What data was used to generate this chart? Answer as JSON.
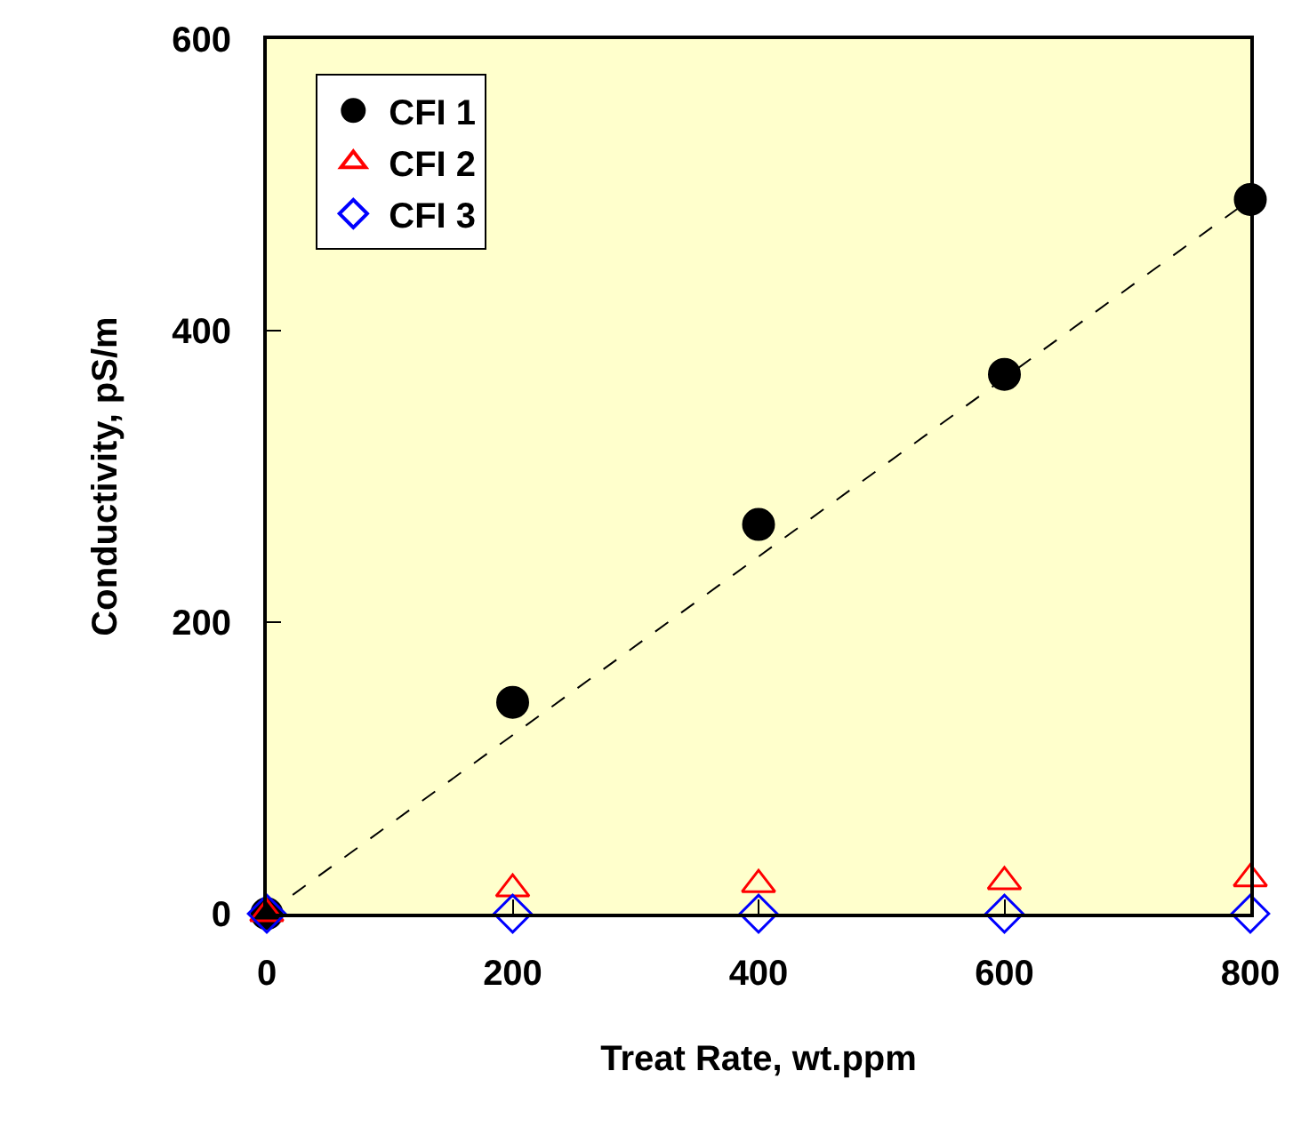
{
  "chart_data": {
    "type": "scatter",
    "xlabel": "Treat Rate, wt.ppm",
    "ylabel": "Conductivity, pS/m",
    "x": [
      0,
      200,
      400,
      600,
      800
    ],
    "series": [
      {
        "name": "CFI 1",
        "color": "#000000",
        "marker": "circle",
        "values": [
          0,
          145,
          267,
          370,
          490
        ]
      },
      {
        "name": "CFI 2",
        "color": "#ff0000",
        "marker": "triangle",
        "values": [
          0,
          17,
          20,
          22,
          24
        ]
      },
      {
        "name": "CFI 3",
        "color": "#0000ff",
        "marker": "diamond",
        "values": [
          0,
          0,
          0,
          0,
          0
        ]
      },
      {
        "type": "line",
        "color": "#000000",
        "line_style": "dashed",
        "marker": "none",
        "x": [
          0,
          800
        ],
        "values": [
          0,
          490
        ]
      }
    ],
    "xlim": [
      0,
      800
    ],
    "ylim": [
      0,
      600
    ],
    "xticks": [
      0,
      200,
      400,
      600,
      800
    ],
    "yticks": [
      0,
      200,
      400,
      600
    ],
    "grid": false,
    "legend": "top left"
  }
}
